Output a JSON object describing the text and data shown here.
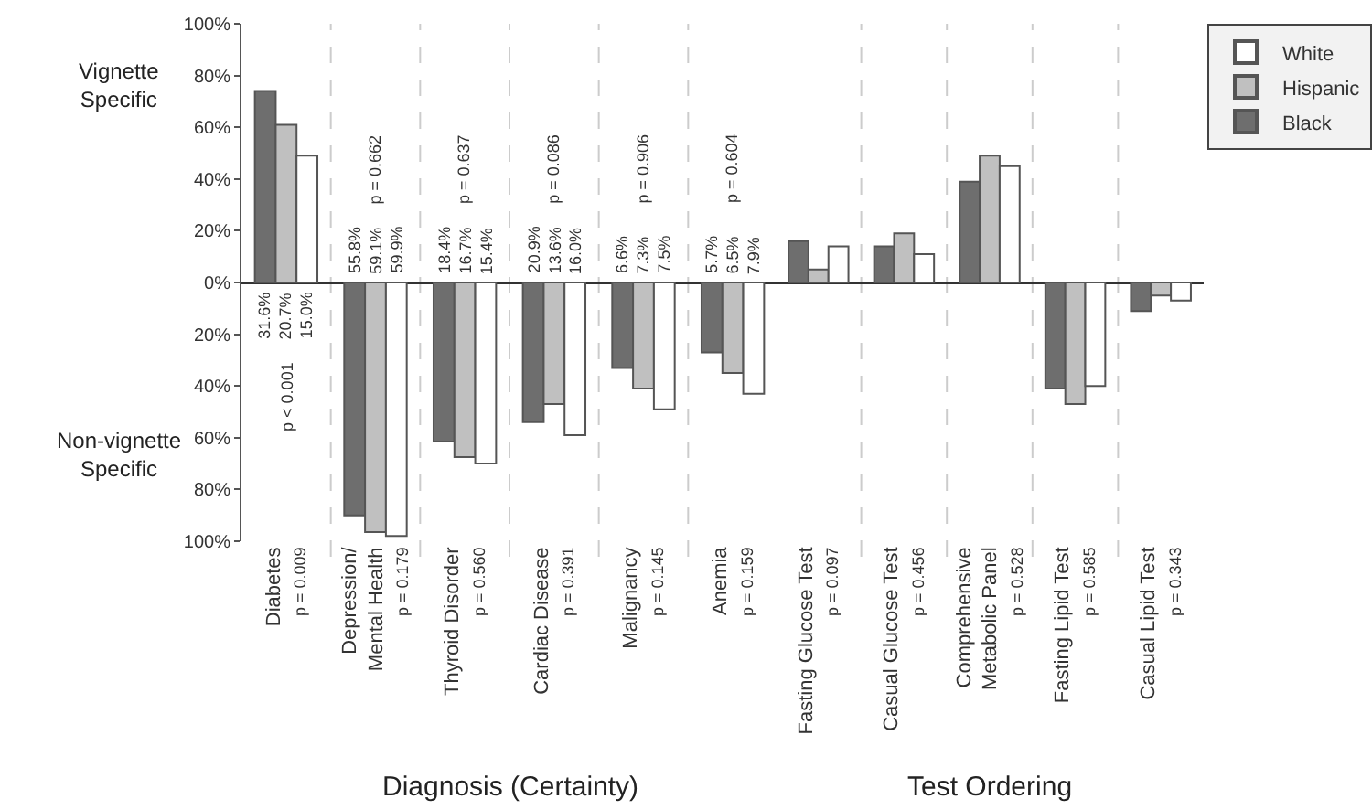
{
  "chart_data": [
    {
      "type": "bar",
      "xlabel": "Diagnosis (Certainty)",
      "categories": [
        "Diabetes\np = 0.009",
        "Depression/\nMental Health\np = 0.179",
        "Thyroid Disorder\np = 0.560",
        "Cardiac Disease\np = 0.391",
        "Malignancy\np = 0.145",
        "Anemia\np = 0.159"
      ],
      "series": [
        {
          "color": "#6e6e6e",
          "values": [
            74,
            -90,
            -61.5,
            -54,
            -33,
            -27
          ]
        },
        {
          "color": "#c0c0c0",
          "values": [
            61,
            -96.5,
            -67.5,
            -47,
            -41,
            -35
          ]
        },
        {
          "color": "#ffffff",
          "values": [
            49,
            -98,
            -70,
            -59,
            -49,
            -43
          ]
        }
      ],
      "ylim": [
        -100,
        100
      ],
      "yticks": [
        {
          "value": 100,
          "label": "100%"
        },
        {
          "value": 80,
          "label": "80%"
        },
        {
          "value": 60,
          "label": "60%"
        },
        {
          "value": 40,
          "label": "40%"
        },
        {
          "value": 20,
          "label": "20%"
        },
        {
          "value": 0,
          "label": "0%"
        },
        {
          "value": -20,
          "label": "20%"
        },
        {
          "value": -40,
          "label": "40%"
        },
        {
          "value": -60,
          "label": "60%"
        },
        {
          "value": -80,
          "label": "80%"
        },
        {
          "value": -100,
          "label": "100%"
        }
      ],
      "grid": "x",
      "annotations": [
        "Vignette\nSpecific",
        "Non-vignette\nSpecific",
        {
          "text": "31.6%",
          "x": "Diabetes\np = 0.009",
          "y": -2
        },
        {
          "text": "20.7%",
          "x": "Diabetes\np = 0.009",
          "y": -2
        },
        {
          "text": "15.0%",
          "x": "Diabetes\np = 0.009",
          "y": -2
        },
        "p < 0.001",
        {
          "text": "55.8%",
          "x": "Depression/\nMental Health\np = 0.179",
          "y": 2
        },
        {
          "text": "59.1%",
          "x": "Depression/\nMental Health\np = 0.179",
          "y": 2
        },
        {
          "text": "59.9%",
          "x": "Depression/\nMental Health\np = 0.179",
          "y": 2
        },
        "p = 0.662",
        {
          "text": "18.4%",
          "x": "Thyroid Disorder\np = 0.560",
          "y": 2
        },
        {
          "text": "16.7%",
          "x": "Thyroid Disorder\np = 0.560",
          "y": 2
        },
        {
          "text": "15.4%",
          "x": "Thyroid Disorder\np = 0.560",
          "y": 2
        },
        "p = 0.637",
        {
          "text": "20.9%",
          "x": "Cardiac Disease\np = 0.391",
          "y": 2
        },
        {
          "text": "13.6%",
          "x": "Cardiac Disease\np = 0.391",
          "y": 2
        },
        {
          "text": "16.0%",
          "x": "Cardiac Disease\np = 0.391",
          "y": 2
        },
        "p = 0.086",
        {
          "text": "6.6%",
          "x": "Malignancy\np = 0.145",
          "y": 2
        },
        {
          "text": "7.3%",
          "x": "Malignancy\np = 0.145",
          "y": 2
        },
        {
          "text": "7.5%",
          "x": "Malignancy\np = 0.145",
          "y": 2
        },
        "p = 0.906",
        {
          "text": "5.7%",
          "x": "Anemia\np = 0.159",
          "y": 2
        },
        {
          "text": "6.5%",
          "x": "Anemia\np = 0.159",
          "y": 2
        },
        {
          "text": "7.9%",
          "x": "Anemia\np = 0.159",
          "y": 2
        },
        "p = 0.604"
      ]
    },
    {
      "type": "bar",
      "xlabel": "Test Ordering",
      "categories": [
        "Fasting Glucose Test\np = 0.097",
        "Casual Glucose Test\np = 0.456",
        "Comprehensive\nMetabolic Panel\np = 0.528",
        "Fasting Lipid Test\np = 0.585",
        "Casual Lipid Test\np = 0.343"
      ],
      "series": [
        {
          "name": "Black",
          "color": "#6e6e6e",
          "values": [
            16,
            14,
            39,
            -41,
            -11
          ]
        },
        {
          "name": "Hispanic",
          "color": "#c0c0c0",
          "values": [
            5,
            19,
            49,
            -47,
            -5
          ]
        },
        {
          "name": "White",
          "color": "#ffffff",
          "values": [
            14,
            11,
            45,
            -40,
            -7
          ]
        }
      ],
      "ylim": [
        -100,
        100
      ],
      "grid": "x",
      "tick_labels": "x",
      "legend": "top right"
    }
  ]
}
